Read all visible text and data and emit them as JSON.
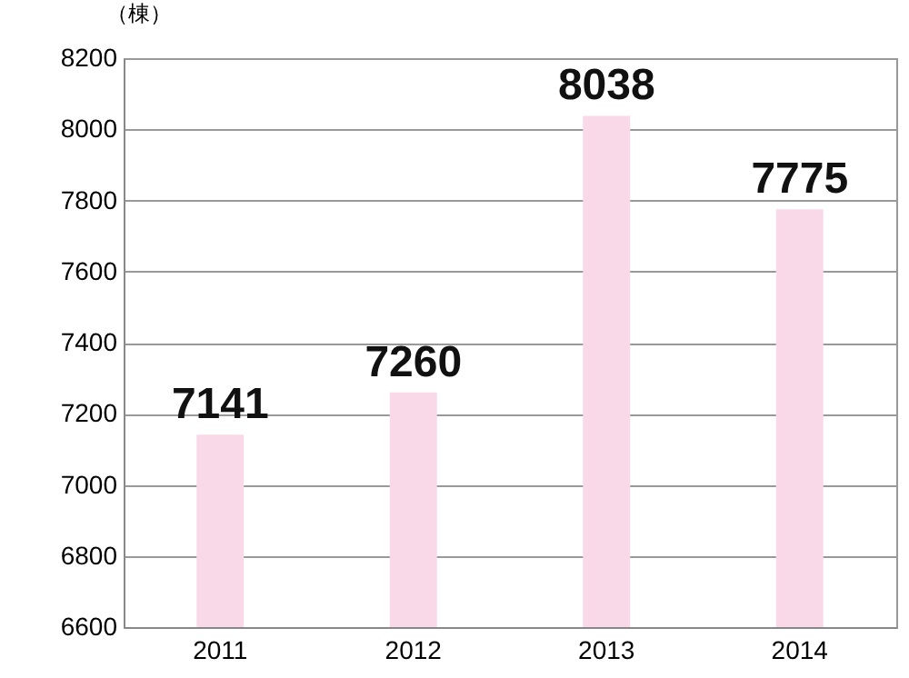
{
  "chart_data": {
    "type": "bar",
    "ylabel": "（棟）",
    "categories": [
      "2011",
      "2012",
      "2013",
      "2014"
    ],
    "values": [
      7141,
      7260,
      8038,
      7775
    ],
    "color": "#f9d9e8",
    "ylim": [
      6600,
      8200
    ],
    "yticks": [
      6600,
      6800,
      7000,
      7200,
      7400,
      7600,
      7800,
      8000,
      8200
    ],
    "grid": "y",
    "data_labels": true
  }
}
